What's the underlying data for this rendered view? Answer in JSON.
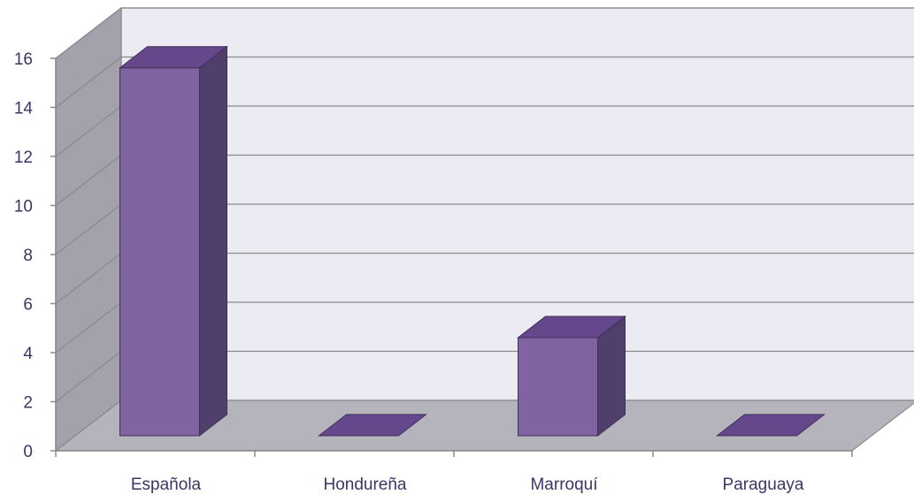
{
  "chart_data": {
    "type": "bar",
    "title": "",
    "xlabel": "",
    "ylabel": "",
    "categories": [
      "Española",
      "Hondureña",
      "Marroquí",
      "Paraguaya"
    ],
    "values": [
      15,
      0,
      4,
      0
    ],
    "ylim": [
      0,
      16
    ],
    "yticks": [
      0,
      2,
      4,
      6,
      8,
      10,
      12,
      14,
      16
    ],
    "grid": true,
    "legend": "none",
    "style": "3d-column"
  },
  "colors": {
    "bar_front": "#8064a2",
    "bar_top": "#65478b",
    "bar_side": "#4f3f6a",
    "bar_edge": "#3f3157",
    "back_wall": "#ecebf3",
    "side_wall": "#a3a1ac",
    "floor": "#b5b3bb",
    "grid": "#8a8a8a",
    "axis": "#8a8a8a",
    "text": "#3d3466"
  }
}
